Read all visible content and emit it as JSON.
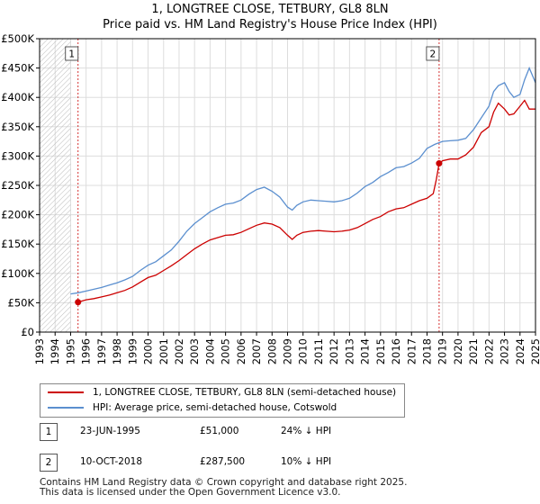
{
  "title_line1": "1, LONGTREE CLOSE, TETBURY, GL8 8LN",
  "title_line2": "Price paid vs. HM Land Registry's House Price Index (HPI)",
  "colors": {
    "property": "#cc0000",
    "hpi": "#5b8fcf",
    "grid": "#dddddd",
    "hatch": "#bbbbbb"
  },
  "chart_data": {
    "type": "line",
    "title": "1, LONGTREE CLOSE, TETBURY, GL8 8LN — Price paid vs. HM Land Registry's House Price Index (HPI)",
    "xlim": [
      1993,
      2025
    ],
    "ylim": [
      0,
      500000
    ],
    "x_ticks": [
      "1993",
      "1994",
      "1995",
      "1996",
      "1997",
      "1998",
      "1999",
      "2000",
      "2001",
      "2002",
      "2003",
      "2004",
      "2005",
      "2006",
      "2007",
      "2008",
      "2009",
      "2010",
      "2011",
      "2012",
      "2013",
      "2014",
      "2015",
      "2016",
      "2017",
      "2018",
      "2019",
      "2020",
      "2021",
      "2022",
      "2023",
      "2024",
      "2025"
    ],
    "y_ticks": [
      {
        "value": 0,
        "label": "£0"
      },
      {
        "value": 50000,
        "label": "£50K"
      },
      {
        "value": 100000,
        "label": "£100K"
      },
      {
        "value": 150000,
        "label": "£150K"
      },
      {
        "value": 200000,
        "label": "£200K"
      },
      {
        "value": 250000,
        "label": "£250K"
      },
      {
        "value": 300000,
        "label": "£300K"
      },
      {
        "value": 350000,
        "label": "£350K"
      },
      {
        "value": 400000,
        "label": "£400K"
      },
      {
        "value": 450000,
        "label": "£450K"
      },
      {
        "value": 500000,
        "label": "£500K"
      }
    ],
    "grid": true,
    "series": [
      {
        "name": "1, LONGTREE CLOSE, TETBURY, GL8 8LN (semi-detached house)",
        "color": "#cc0000",
        "x": [
          1995.48,
          1996,
          1996.5,
          1997,
          1997.5,
          1998,
          1998.5,
          1999,
          1999.5,
          2000,
          2000.5,
          2001,
          2001.5,
          2002,
          2002.5,
          2003,
          2003.5,
          2004,
          2004.5,
          2005,
          2005.5,
          2006,
          2006.5,
          2007,
          2007.5,
          2008,
          2008.5,
          2009,
          2009.3,
          2009.6,
          2010,
          2010.5,
          2011,
          2011.5,
          2012,
          2012.5,
          2013,
          2013.5,
          2014,
          2014.5,
          2015,
          2015.5,
          2016,
          2016.5,
          2017,
          2017.5,
          2018,
          2018.4,
          2018.6,
          2018.78,
          2019,
          2019.5,
          2020,
          2020.5,
          2021,
          2021.5,
          2022,
          2022.3,
          2022.6,
          2023,
          2023.3,
          2023.6,
          2024,
          2024.3,
          2024.6,
          2025
        ],
        "y": [
          51000,
          55000,
          57000,
          60000,
          63000,
          67000,
          71000,
          77000,
          85000,
          93000,
          97000,
          105000,
          113000,
          122000,
          132000,
          142000,
          150000,
          157000,
          161000,
          165000,
          166000,
          170000,
          176000,
          182000,
          186000,
          184000,
          178000,
          165000,
          158000,
          165000,
          170000,
          172000,
          173000,
          172000,
          171000,
          172000,
          174000,
          178000,
          185000,
          192000,
          197000,
          205000,
          210000,
          212000,
          218000,
          224000,
          228000,
          236000,
          260000,
          287500,
          292000,
          295000,
          295000,
          302000,
          315000,
          340000,
          350000,
          375000,
          390000,
          380000,
          370000,
          372000,
          385000,
          395000,
          380000,
          380000
        ]
      },
      {
        "name": "HPI: Average price, semi-detached house, Cotswold",
        "color": "#5b8fcf",
        "x": [
          1995,
          1995.5,
          1996,
          1996.5,
          1997,
          1997.5,
          1998,
          1998.5,
          1999,
          1999.5,
          2000,
          2000.5,
          2001,
          2001.5,
          2002,
          2002.5,
          2003,
          2003.5,
          2004,
          2004.5,
          2005,
          2005.5,
          2006,
          2006.5,
          2007,
          2007.5,
          2008,
          2008.5,
          2009,
          2009.3,
          2009.6,
          2010,
          2010.5,
          2011,
          2011.5,
          2012,
          2012.5,
          2013,
          2013.5,
          2014,
          2014.5,
          2015,
          2015.5,
          2016,
          2016.5,
          2017,
          2017.5,
          2018,
          2018.5,
          2019,
          2019.5,
          2020,
          2020.5,
          2021,
          2021.5,
          2022,
          2022.3,
          2022.6,
          2023,
          2023.3,
          2023.6,
          2024,
          2024.3,
          2024.6,
          2025
        ],
        "y": [
          65000,
          67000,
          70000,
          73000,
          76000,
          80000,
          84000,
          89000,
          95000,
          105000,
          114000,
          120000,
          130000,
          140000,
          155000,
          172000,
          185000,
          195000,
          205000,
          212000,
          218000,
          220000,
          225000,
          235000,
          243000,
          247000,
          240000,
          230000,
          213000,
          208000,
          216000,
          222000,
          225000,
          224000,
          223000,
          222000,
          224000,
          228000,
          237000,
          248000,
          255000,
          265000,
          272000,
          280000,
          282000,
          288000,
          296000,
          313000,
          320000,
          325000,
          326000,
          327000,
          330000,
          345000,
          365000,
          385000,
          410000,
          420000,
          425000,
          410000,
          400000,
          405000,
          430000,
          450000,
          425000
        ]
      }
    ],
    "annotations": [
      {
        "label": "1",
        "x": 1995.48,
        "y": 51000
      },
      {
        "label": "2",
        "x": 2018.78,
        "y": 287500
      }
    ],
    "legend": "below chart"
  },
  "legend": {
    "property_label": "1, LONGTREE CLOSE, TETBURY, GL8 8LN (semi-detached house)",
    "hpi_label": "HPI: Average price, semi-detached house, Cotswold"
  },
  "sales": [
    {
      "num": "1",
      "date": "23-JUN-1995",
      "price": "£51,000",
      "hpi_diff": "24% ↓ HPI"
    },
    {
      "num": "2",
      "date": "10-OCT-2018",
      "price": "£287,500",
      "hpi_diff": "10% ↓ HPI"
    }
  ],
  "footer_line1": "Contains HM Land Registry data © Crown copyright and database right 2025.",
  "footer_line2": "This data is licensed under the Open Government Licence v3.0."
}
